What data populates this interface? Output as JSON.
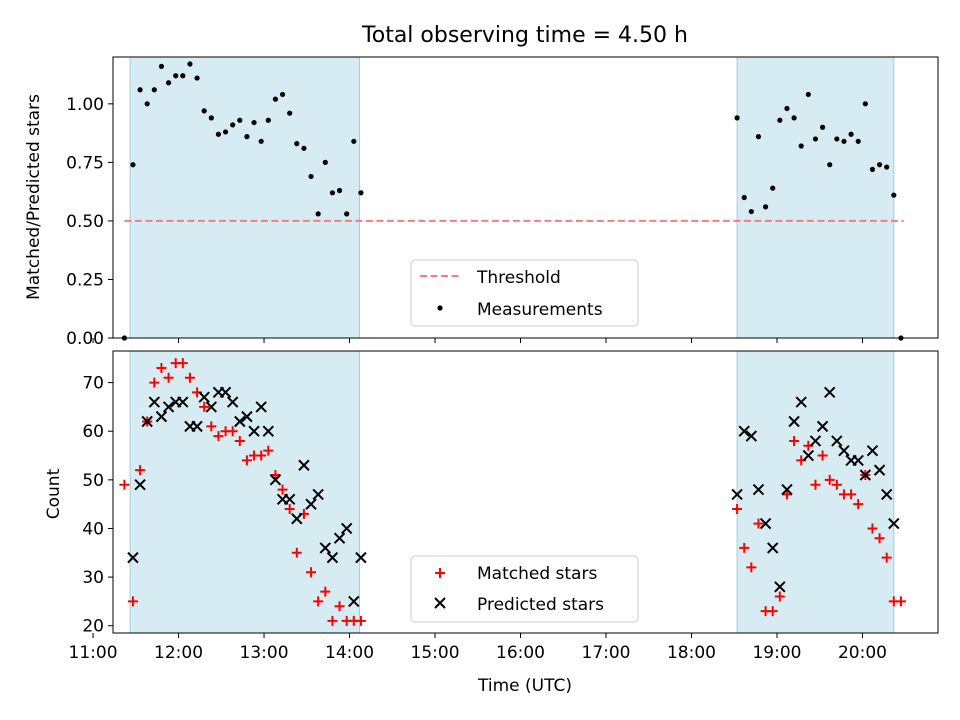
{
  "chart_data": [
    {
      "type": "scatter",
      "title": "Total observing time = 4.50 h",
      "xlabel": "",
      "ylabel": "Matched/Predicted stars",
      "xlim": [
        "11:14",
        "20:53"
      ],
      "ylim": [
        0,
        1.2
      ],
      "y_ticks": [
        "0.00",
        "0.25",
        "0.50",
        "0.75",
        "1.00"
      ],
      "shaded_intervals": [
        [
          "11:26",
          "14:07"
        ],
        [
          "18:32",
          "20:22"
        ]
      ],
      "threshold": {
        "name": "Threshold",
        "value": 0.5,
        "x_start": "11:22",
        "x_end": "20:29",
        "color": "#f08080"
      },
      "legend_position": "lower center",
      "series": [
        {
          "name": "Measurements",
          "color": "#000000",
          "points": [
            [
              "11:22",
              0.0
            ],
            [
              "11:28",
              0.74
            ],
            [
              "11:33",
              1.06
            ],
            [
              "11:38",
              1.0
            ],
            [
              "11:43",
              1.06
            ],
            [
              "11:48",
              1.16
            ],
            [
              "11:53",
              1.09
            ],
            [
              "11:58",
              1.12
            ],
            [
              "12:03",
              1.12
            ],
            [
              "12:08",
              1.17
            ],
            [
              "12:13",
              1.11
            ],
            [
              "12:18",
              0.97
            ],
            [
              "12:23",
              0.94
            ],
            [
              "12:28",
              0.87
            ],
            [
              "12:33",
              0.88
            ],
            [
              "12:38",
              0.91
            ],
            [
              "12:43",
              0.93
            ],
            [
              "12:48",
              0.86
            ],
            [
              "12:53",
              0.92
            ],
            [
              "12:58",
              0.84
            ],
            [
              "13:03",
              0.93
            ],
            [
              "13:08",
              1.02
            ],
            [
              "13:13",
              1.04
            ],
            [
              "13:18",
              0.96
            ],
            [
              "13:23",
              0.83
            ],
            [
              "13:28",
              0.81
            ],
            [
              "13:33",
              0.69
            ],
            [
              "13:38",
              0.53
            ],
            [
              "13:43",
              0.75
            ],
            [
              "13:48",
              0.62
            ],
            [
              "13:53",
              0.63
            ],
            [
              "13:58",
              0.53
            ],
            [
              "14:03",
              0.84
            ],
            [
              "14:08",
              0.62
            ],
            [
              "18:32",
              0.94
            ],
            [
              "18:37",
              0.6
            ],
            [
              "18:42",
              0.54
            ],
            [
              "18:47",
              0.86
            ],
            [
              "18:52",
              0.56
            ],
            [
              "18:57",
              0.64
            ],
            [
              "19:02",
              0.93
            ],
            [
              "19:07",
              0.98
            ],
            [
              "19:12",
              0.94
            ],
            [
              "19:17",
              0.82
            ],
            [
              "19:22",
              1.04
            ],
            [
              "19:27",
              0.85
            ],
            [
              "19:32",
              0.9
            ],
            [
              "19:37",
              0.74
            ],
            [
              "19:42",
              0.85
            ],
            [
              "19:47",
              0.84
            ],
            [
              "19:52",
              0.87
            ],
            [
              "19:57",
              0.84
            ],
            [
              "20:02",
              1.0
            ],
            [
              "20:07",
              0.72
            ],
            [
              "20:12",
              0.74
            ],
            [
              "20:17",
              0.73
            ],
            [
              "20:22",
              0.61
            ],
            [
              "20:27",
              0.0
            ]
          ]
        }
      ]
    },
    {
      "type": "scatter",
      "title": "",
      "xlabel": "Time (UTC)",
      "ylabel": "Count",
      "xlim": [
        "11:14",
        "20:53"
      ],
      "ylim": [
        18.5,
        76.5
      ],
      "y_ticks": [
        "20",
        "30",
        "40",
        "50",
        "60",
        "70"
      ],
      "x_ticks": [
        "11:00",
        "12:00",
        "13:00",
        "14:00",
        "15:00",
        "16:00",
        "17:00",
        "18:00",
        "19:00",
        "20:00"
      ],
      "shaded_intervals": [
        [
          "11:26",
          "14:07"
        ],
        [
          "18:32",
          "20:22"
        ]
      ],
      "legend_position": "lower center",
      "series": [
        {
          "name": "Matched stars",
          "marker": "plus",
          "color": "#ff0000",
          "points": [
            [
              "11:22",
              49
            ],
            [
              "11:28",
              25
            ],
            [
              "11:33",
              52
            ],
            [
              "11:38",
              62
            ],
            [
              "11:43",
              70
            ],
            [
              "11:48",
              73
            ],
            [
              "11:53",
              71
            ],
            [
              "11:58",
              74
            ],
            [
              "12:03",
              74
            ],
            [
              "12:08",
              71
            ],
            [
              "12:13",
              68
            ],
            [
              "12:18",
              65
            ],
            [
              "12:23",
              61
            ],
            [
              "12:28",
              59
            ],
            [
              "12:33",
              60
            ],
            [
              "12:38",
              60
            ],
            [
              "12:43",
              58
            ],
            [
              "12:48",
              54
            ],
            [
              "12:53",
              55
            ],
            [
              "12:58",
              55
            ],
            [
              "13:03",
              56
            ],
            [
              "13:08",
              51
            ],
            [
              "13:13",
              48
            ],
            [
              "13:18",
              44
            ],
            [
              "13:23",
              35
            ],
            [
              "13:28",
              43
            ],
            [
              "13:33",
              31
            ],
            [
              "13:38",
              25
            ],
            [
              "13:43",
              27
            ],
            [
              "13:48",
              21
            ],
            [
              "13:53",
              24
            ],
            [
              "13:58",
              21
            ],
            [
              "14:03",
              21
            ],
            [
              "14:08",
              21
            ],
            [
              "18:32",
              44
            ],
            [
              "18:37",
              36
            ],
            [
              "18:42",
              32
            ],
            [
              "18:47",
              41
            ],
            [
              "18:52",
              23
            ],
            [
              "18:57",
              23
            ],
            [
              "19:02",
              26
            ],
            [
              "19:07",
              47
            ],
            [
              "19:12",
              58
            ],
            [
              "19:17",
              54
            ],
            [
              "19:22",
              57
            ],
            [
              "19:27",
              49
            ],
            [
              "19:32",
              55
            ],
            [
              "19:37",
              50
            ],
            [
              "19:42",
              49
            ],
            [
              "19:47",
              47
            ],
            [
              "19:52",
              47
            ],
            [
              "19:57",
              45
            ],
            [
              "20:02",
              51
            ],
            [
              "20:07",
              40
            ],
            [
              "20:12",
              38
            ],
            [
              "20:17",
              34
            ],
            [
              "20:22",
              25
            ],
            [
              "20:27",
              25
            ]
          ]
        },
        {
          "name": "Predicted stars",
          "marker": "x",
          "color": "#000000",
          "points": [
            [
              "11:28",
              34
            ],
            [
              "11:33",
              49
            ],
            [
              "11:38",
              62
            ],
            [
              "11:43",
              66
            ],
            [
              "11:48",
              63
            ],
            [
              "11:53",
              65
            ],
            [
              "11:58",
              66
            ],
            [
              "12:03",
              66
            ],
            [
              "12:08",
              61
            ],
            [
              "12:13",
              61
            ],
            [
              "12:18",
              67
            ],
            [
              "12:23",
              65
            ],
            [
              "12:28",
              68
            ],
            [
              "12:33",
              68
            ],
            [
              "12:38",
              66
            ],
            [
              "12:43",
              62
            ],
            [
              "12:48",
              63
            ],
            [
              "12:53",
              60
            ],
            [
              "12:58",
              65
            ],
            [
              "13:03",
              60
            ],
            [
              "13:08",
              50
            ],
            [
              "13:13",
              46
            ],
            [
              "13:18",
              46
            ],
            [
              "13:23",
              42
            ],
            [
              "13:28",
              53
            ],
            [
              "13:33",
              45
            ],
            [
              "13:38",
              47
            ],
            [
              "13:43",
              36
            ],
            [
              "13:48",
              34
            ],
            [
              "13:53",
              38
            ],
            [
              "13:58",
              40
            ],
            [
              "14:03",
              25
            ],
            [
              "14:08",
              34
            ],
            [
              "18:32",
              47
            ],
            [
              "18:37",
              60
            ],
            [
              "18:42",
              59
            ],
            [
              "18:47",
              48
            ],
            [
              "18:52",
              41
            ],
            [
              "18:57",
              36
            ],
            [
              "19:02",
              28
            ],
            [
              "19:07",
              48
            ],
            [
              "19:12",
              62
            ],
            [
              "19:17",
              66
            ],
            [
              "19:22",
              55
            ],
            [
              "19:27",
              58
            ],
            [
              "19:32",
              61
            ],
            [
              "19:37",
              68
            ],
            [
              "19:42",
              58
            ],
            [
              "19:47",
              56
            ],
            [
              "19:52",
              54
            ],
            [
              "19:57",
              54
            ],
            [
              "20:02",
              51
            ],
            [
              "20:07",
              56
            ],
            [
              "20:12",
              52
            ],
            [
              "20:17",
              47
            ],
            [
              "20:22",
              41
            ]
          ]
        }
      ]
    }
  ]
}
